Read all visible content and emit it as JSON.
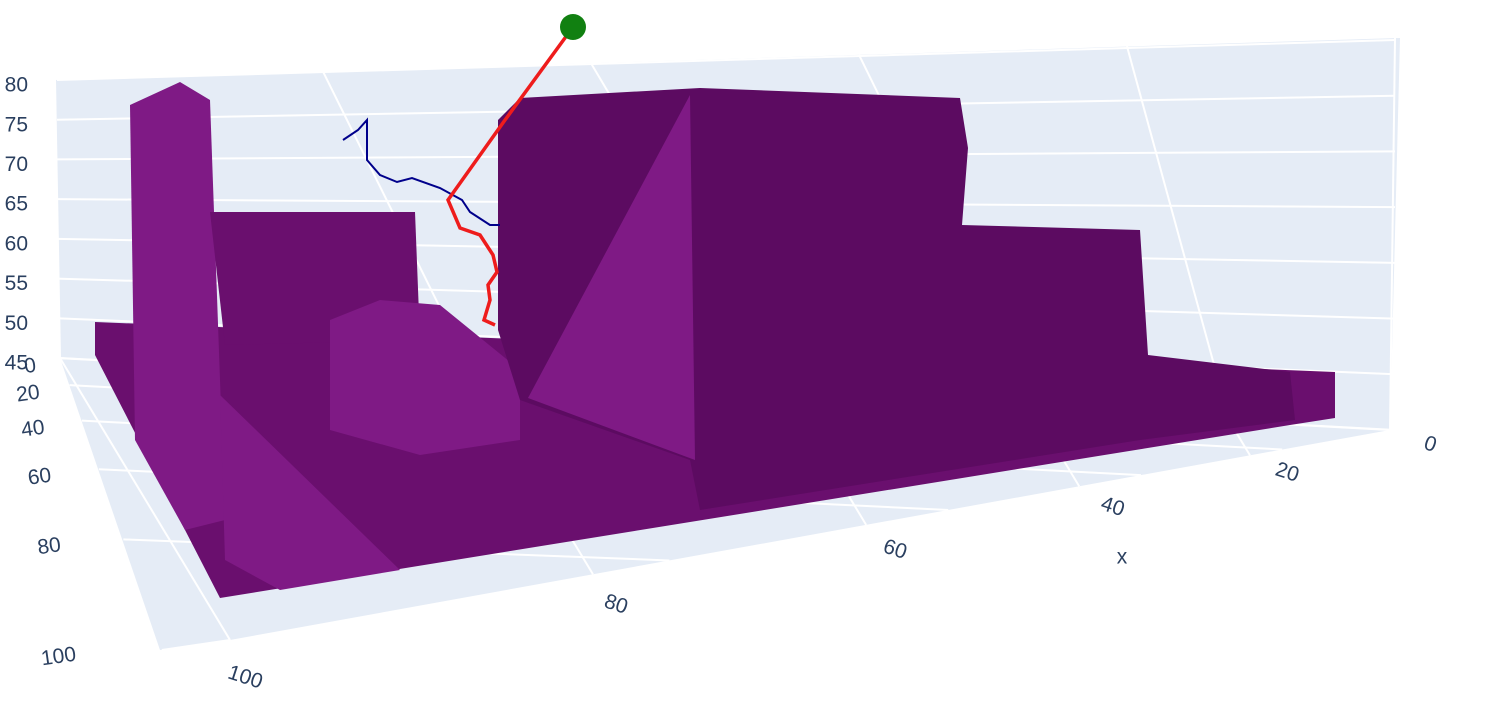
{
  "chart_data": {
    "type": "scatter3d",
    "xaxis_title": "x",
    "xlim": [
      0,
      100
    ],
    "xticks": [
      0,
      20,
      40,
      60,
      80,
      100
    ],
    "ylim": [
      0,
      100
    ],
    "yticks": [
      0,
      20,
      40,
      60,
      80,
      100
    ],
    "zlim": [
      45,
      80
    ],
    "zticks": [
      45,
      50,
      55,
      60,
      65,
      70,
      75,
      80
    ],
    "grid": true
  }
}
